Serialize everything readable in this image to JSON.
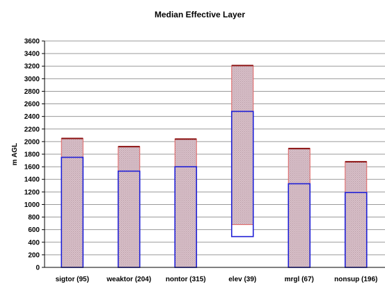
{
  "chart_data": {
    "type": "bar",
    "title": "Median Effective Layer",
    "ylabel": "m AGL",
    "xlabel": "",
    "ylim": [
      0,
      3600
    ],
    "ytick_step": 200,
    "grid": true,
    "legend": "none",
    "categories": [
      "sigtor (95)",
      "weaktor (204)",
      "nontor (315)",
      "elev (39)",
      "mrgl (67)",
      "nonsup (196)"
    ],
    "series": [
      {
        "role": "layer-bottom",
        "values": [
          0,
          0,
          0,
          490,
          0,
          0
        ]
      },
      {
        "role": "layer-bottom-band-top",
        "values": [
          0,
          0,
          0,
          680,
          0,
          0
        ]
      },
      {
        "role": "median-layer-top",
        "values": [
          1750,
          1530,
          1600,
          2480,
          1330,
          1190
        ]
      },
      {
        "role": "upper-layer-top",
        "values": [
          2050,
          1920,
          2040,
          3210,
          1890,
          1680
        ]
      }
    ],
    "colors": {
      "lower_box_border": "#1f1fd6",
      "upper_box_border": "#e06060",
      "top_cap": "#8b1010",
      "fill_pattern_a": "#d8c0c8",
      "fill_pattern_b": "#b89aa6",
      "grid": "#9a9a9a",
      "axis": "#000000"
    }
  }
}
